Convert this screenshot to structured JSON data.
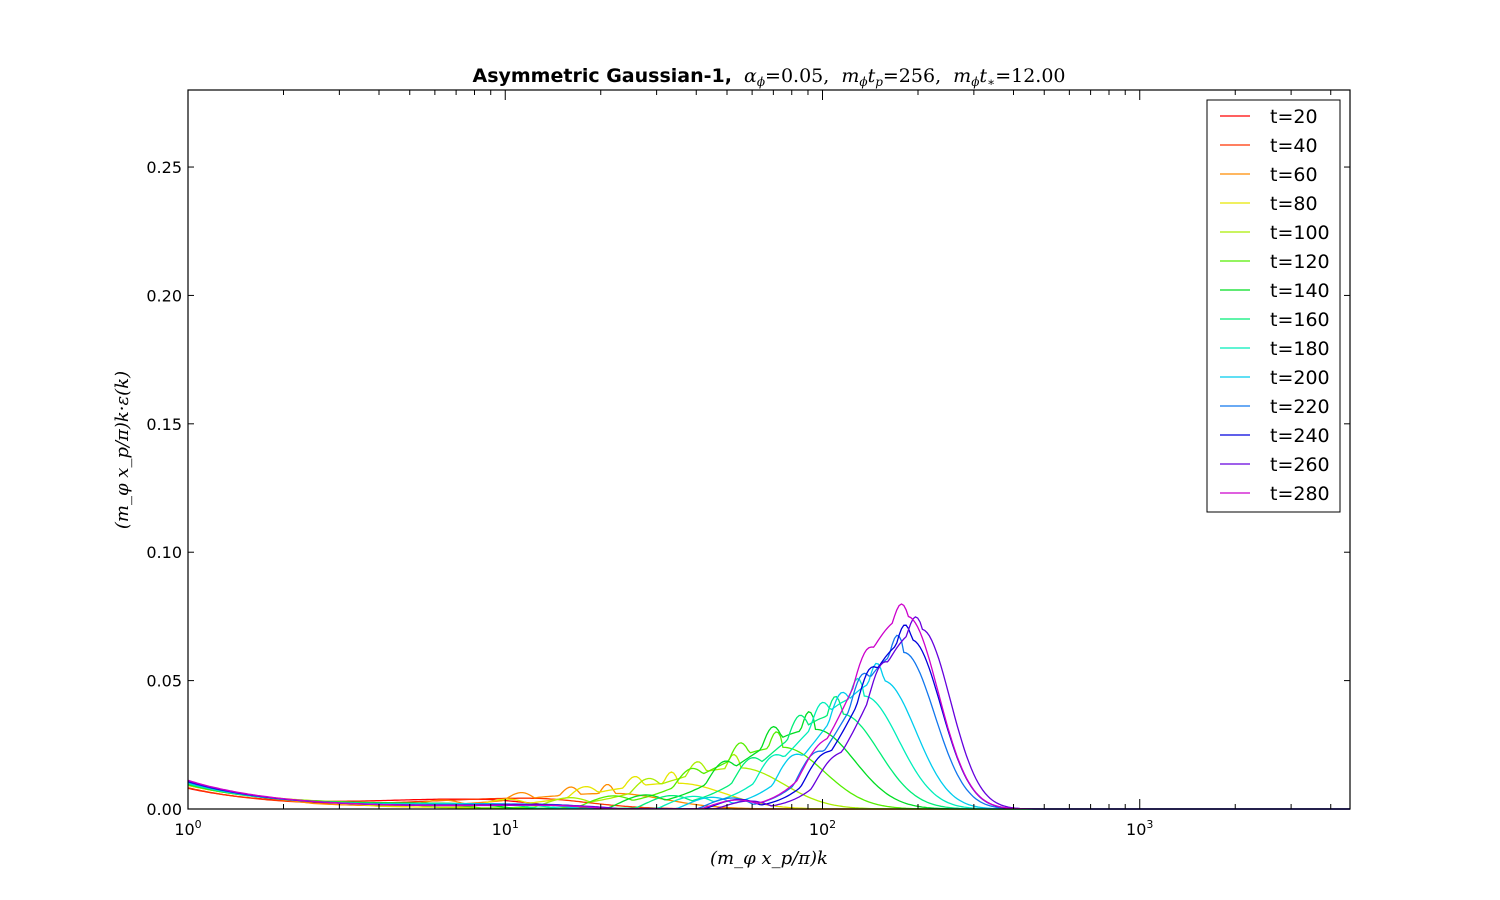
{
  "chart_data": {
    "type": "line",
    "title": "Asymmetric Gaussian-1, α_φ=0.05, m_φt_p=256, m_φt_*=12.00",
    "title_parts": {
      "bold": "Asymmetric Gaussian-1,",
      "param1": "α",
      "param1_sub": "ϕ",
      "param1_val": "=0.05,",
      "param2": "m",
      "param2_sub": "ϕ",
      "param2_t": "t",
      "param2_tsub": "p",
      "param2_val": "=256,",
      "param3": "m",
      "param3_sub": "ϕ",
      "param3_t": "t",
      "param3_tsub": "∗",
      "param3_val": "=12.00"
    },
    "xlabel": "(m_φ x_p/π)k",
    "ylabel": "(m_φ x_p/π)k·ε(k)",
    "x_scale": "log",
    "xlim": [
      1,
      4600
    ],
    "ylim": [
      0,
      0.28
    ],
    "x_ticks": [
      {
        "value": 1,
        "base": "10",
        "exp": "0"
      },
      {
        "value": 10,
        "base": "10",
        "exp": "1"
      },
      {
        "value": 100,
        "base": "10",
        "exp": "2"
      },
      {
        "value": 1000,
        "base": "10",
        "exp": "3"
      }
    ],
    "y_ticks": [
      "0.00",
      "0.05",
      "0.10",
      "0.15",
      "0.20",
      "0.25"
    ],
    "y_tick_values": [
      0,
      0.05,
      0.1,
      0.15,
      0.2,
      0.25
    ],
    "grid": false,
    "legend_position": "top-right",
    "series": [
      {
        "name": "t=20",
        "color": "#ff0000",
        "peak_k": 8,
        "peak": 0.0035,
        "width": 0.55,
        "osc": 0.0
      },
      {
        "name": "t=40",
        "color": "#ff3300",
        "peak_k": 12,
        "peak": 0.004,
        "width": 0.55,
        "osc": 0.0
      },
      {
        "name": "t=60",
        "color": "#ff8c00",
        "peak_k": 22,
        "peak": 0.006,
        "width": 0.5,
        "osc": 0.004
      },
      {
        "name": "t=80",
        "color": "#e6e600",
        "peak_k": 35,
        "peak": 0.01,
        "width": 0.45,
        "osc": 0.005
      },
      {
        "name": "t=100",
        "color": "#aaee00",
        "peak_k": 55,
        "peak": 0.016,
        "width": 0.42,
        "osc": 0.006
      },
      {
        "name": "t=120",
        "color": "#55ee00",
        "peak_k": 75,
        "peak": 0.024,
        "width": 0.4,
        "osc": 0.007
      },
      {
        "name": "t=140",
        "color": "#00dd22",
        "peak_k": 95,
        "peak": 0.031,
        "width": 0.38,
        "osc": 0.008
      },
      {
        "name": "t=160",
        "color": "#00ee77",
        "peak_k": 115,
        "peak": 0.037,
        "width": 0.36,
        "osc": 0.008
      },
      {
        "name": "t=180",
        "color": "#00eebb",
        "peak_k": 135,
        "peak": 0.044,
        "width": 0.34,
        "osc": 0.008
      },
      {
        "name": "t=200",
        "color": "#00ccee",
        "peak_k": 155,
        "peak": 0.05,
        "width": 0.32,
        "osc": 0.008
      },
      {
        "name": "t=220",
        "color": "#1177ee",
        "peak_k": 180,
        "peak": 0.061,
        "width": 0.3,
        "osc": 0.008
      },
      {
        "name": "t=240",
        "color": "#0000dd",
        "peak_k": 190,
        "peak": 0.066,
        "width": 0.29,
        "osc": 0.007
      },
      {
        "name": "t=260",
        "color": "#6600dd",
        "peak_k": 205,
        "peak": 0.07,
        "width": 0.28,
        "osc": 0.006
      },
      {
        "name": "t=280",
        "color": "#cc00cc",
        "peak_k": 185,
        "peak": 0.075,
        "width": 0.3,
        "osc": 0.006
      }
    ]
  }
}
